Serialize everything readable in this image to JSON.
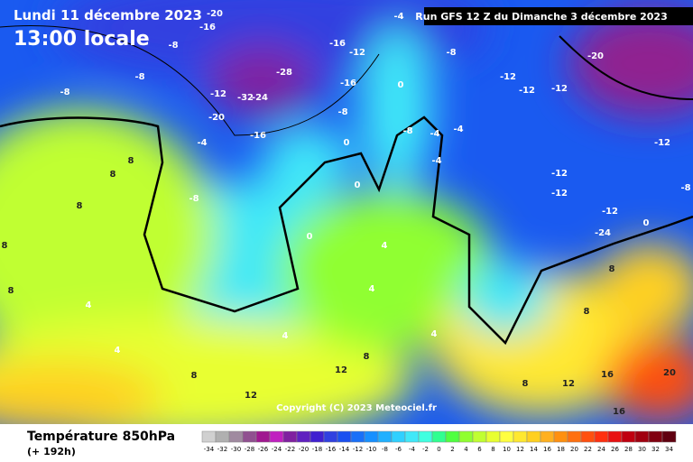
{
  "header": {
    "date": "Lundi 11 décembre 2023",
    "time": "13:00 locale",
    "run": "Run GFS 12 Z du Dimanche 3 décembre 2023"
  },
  "copyright": "Copyright (C) 2023 Meteociel.fr",
  "footer": {
    "title": "Température 850hPa",
    "lead": "(+ 192h)"
  },
  "scale": {
    "values": [
      -34,
      -32,
      -30,
      -28,
      -26,
      -24,
      -22,
      -20,
      -18,
      -16,
      -14,
      -12,
      -10,
      -8,
      -6,
      -4,
      -2,
      0,
      2,
      4,
      6,
      8,
      10,
      12,
      14,
      16,
      18,
      20,
      22,
      24,
      26,
      28,
      30,
      32,
      34
    ],
    "colors": [
      "#d0d0d0",
      "#b0b0b0",
      "#a08aa0",
      "#905090",
      "#a01890",
      "#c020c0",
      "#8020a0",
      "#6020c0",
      "#4020d0",
      "#3040e0",
      "#1a50f0",
      "#1a70f8",
      "#1890ff",
      "#20b0ff",
      "#30d0ff",
      "#40e8f8",
      "#40ffe0",
      "#30ff90",
      "#50ff40",
      "#90ff30",
      "#c0ff30",
      "#e8ff30",
      "#ffff40",
      "#ffe830",
      "#ffd020",
      "#ffb020",
      "#ff9010",
      "#ff7010",
      "#ff5010",
      "#ff3010",
      "#e81010",
      "#c00010",
      "#a00010",
      "#800010",
      "#600010"
    ]
  },
  "map_labels": [
    -20,
    -16,
    -8,
    -12,
    -20,
    -32,
    -24,
    -28,
    -16,
    -4,
    -8,
    -8,
    -8,
    8,
    8,
    8,
    8,
    8,
    4,
    4,
    8,
    12,
    4,
    12,
    8,
    0,
    0,
    0,
    0,
    -4,
    -8,
    -12,
    -12,
    -12,
    -20,
    -12,
    -12,
    -12,
    -12,
    0,
    8,
    8,
    16,
    20,
    16,
    12,
    8,
    4,
    4,
    -4,
    -8,
    -4,
    -4,
    -8,
    -24,
    -16,
    -16,
    -12,
    -8,
    4
  ]
}
